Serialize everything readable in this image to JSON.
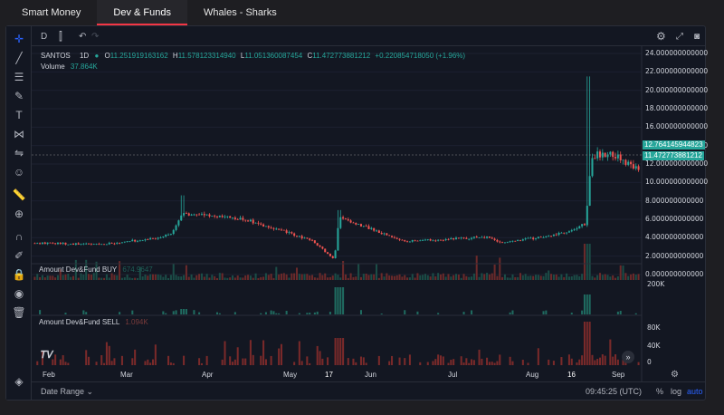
{
  "tabs": [
    {
      "label": "Smart Money",
      "active": false
    },
    {
      "label": "Dev & Funds",
      "active": true
    },
    {
      "label": "Whales - Sharks",
      "active": false
    }
  ],
  "toolbar": {
    "interval_short": "D"
  },
  "legend": {
    "symbol": "SANTOS",
    "interval": "1D",
    "open_label": "O",
    "open": "11.251919163162",
    "high_label": "H",
    "high": "11.578123314940",
    "low_label": "L",
    "low": "11.051360087454",
    "close_label": "C",
    "close": "11.472773881212",
    "change": "+0.220854718050 (+1.96%)",
    "volume_label": "Volume",
    "volume_value": "37.864K"
  },
  "price_badges": {
    "upper": "12.764145944823",
    "lower": "11.472773881212"
  },
  "y_ticks": [
    "24.000000000000",
    "22.000000000000",
    "20.000000000000",
    "18.000000000000",
    "16.000000000000",
    "14.000000000000",
    "12.000000000000",
    "10.000000000000",
    "8.000000000000",
    "6.000000000000",
    "4.000000000000",
    "2.000000000000",
    "0.000000000000"
  ],
  "pane_buy": {
    "title": "Amount Dev&Fund BUY",
    "value": "674.9647",
    "tick": "200K"
  },
  "pane_sell": {
    "title": "Amount Dev&Fund SELL",
    "value": "1.094K",
    "ticks": [
      "80K",
      "40K",
      "0"
    ]
  },
  "x_ticks": [
    "Feb",
    "Mar",
    "Apr",
    "May",
    "17",
    "Jun",
    "Jul",
    "Aug",
    "16",
    "Sep"
  ],
  "bottom": {
    "date_range": "Date Range",
    "time": "09:45:25 (UTC)",
    "percent": "%",
    "log": "log",
    "auto": "auto"
  },
  "colors": {
    "up": "#26a69a",
    "down": "#ef5350",
    "accent": "#2962ff",
    "tab_active": "#f23645"
  },
  "chart_data": {
    "type": "candlestick",
    "y_range": [
      0,
      24
    ],
    "x_months": [
      "Feb",
      "Mar",
      "Apr",
      "May",
      "Jun",
      "Jul",
      "Aug",
      "Sep"
    ],
    "close_keypoints": [
      {
        "pos": 0.0,
        "price": 3.4
      },
      {
        "pos": 0.15,
        "price": 3.3
      },
      {
        "pos": 0.25,
        "price": 3.9
      },
      {
        "pos": 0.29,
        "price": 4.3
      },
      {
        "pos": 0.32,
        "price": 6.6
      },
      {
        "pos": 0.45,
        "price": 6.0
      },
      {
        "pos": 0.55,
        "price": 4.5
      },
      {
        "pos": 0.6,
        "price": 3.6
      },
      {
        "pos": 0.645,
        "price": 1.6
      },
      {
        "pos": 0.655,
        "price": 6.2
      },
      {
        "pos": 0.72,
        "price": 5.0
      },
      {
        "pos": 0.8,
        "price": 3.6
      },
      {
        "pos": 0.98,
        "price": 4.1
      },
      {
        "pos": 1.0,
        "price": 3.5
      },
      {
        "pos": 1.08,
        "price": 4.0
      },
      {
        "pos": 1.15,
        "price": 4.6
      },
      {
        "pos": 1.185,
        "price": 5.5
      },
      {
        "pos": 1.2,
        "price": 13.0
      },
      {
        "pos": 1.25,
        "price": 13.0
      },
      {
        "pos": 1.28,
        "price": 12.0
      },
      {
        "pos": 1.3,
        "price": 11.5
      }
    ],
    "max_high": 21.5
  }
}
